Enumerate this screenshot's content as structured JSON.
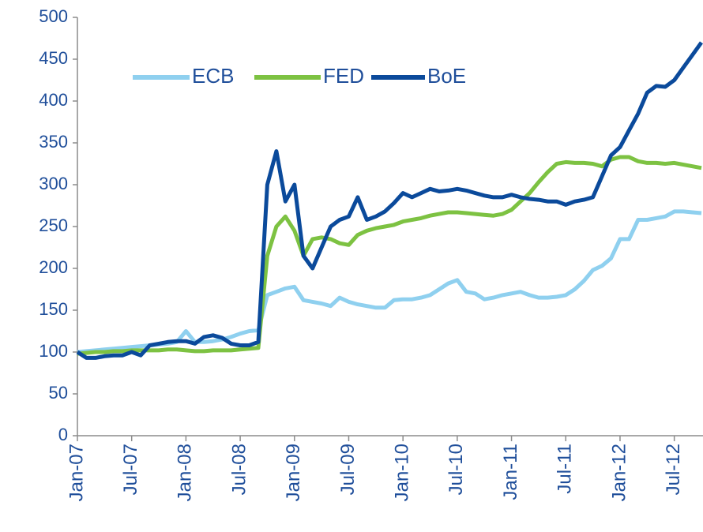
{
  "chart_data": {
    "type": "line",
    "categories": [
      "Jan-07",
      null,
      null,
      null,
      null,
      null,
      "Jul-07",
      null,
      null,
      null,
      null,
      null,
      "Jan-08",
      null,
      null,
      null,
      null,
      null,
      "Jul-08",
      null,
      null,
      null,
      null,
      null,
      "Jan-09",
      null,
      null,
      null,
      null,
      null,
      "Jul-09",
      null,
      null,
      null,
      null,
      null,
      "Jan-10",
      null,
      null,
      null,
      null,
      null,
      "Jul-10",
      null,
      null,
      null,
      null,
      null,
      "Jan-11",
      null,
      null,
      null,
      null,
      null,
      "Jul-11",
      null,
      null,
      null,
      null,
      null,
      "Jan-12",
      null,
      null,
      null,
      null,
      null,
      "Jul-12",
      null,
      null,
      null
    ],
    "series": [
      {
        "name": "ECB",
        "color": "#8fd0ef",
        "values": [
          100,
          101,
          102,
          103,
          104,
          105,
          106,
          107,
          108,
          109,
          110,
          112,
          125,
          112,
          112,
          113,
          115,
          118,
          122,
          125,
          126,
          168,
          172,
          176,
          178,
          162,
          160,
          158,
          155,
          165,
          160,
          157,
          155,
          153,
          153,
          162,
          163,
          163,
          165,
          168,
          175,
          182,
          186,
          172,
          170,
          163,
          165,
          168,
          170,
          172,
          168,
          165,
          165,
          166,
          168,
          175,
          185,
          198,
          203,
          212,
          235,
          235,
          258,
          258,
          260,
          262,
          268,
          268,
          267,
          266
        ]
      },
      {
        "name": "FED",
        "color": "#7dc242",
        "values": [
          98,
          99,
          100,
          100,
          101,
          101,
          102,
          102,
          102,
          102,
          103,
          103,
          102,
          101,
          101,
          102,
          102,
          102,
          103,
          104,
          105,
          215,
          250,
          262,
          245,
          215,
          235,
          237,
          235,
          230,
          228,
          240,
          245,
          248,
          250,
          252,
          256,
          258,
          260,
          263,
          265,
          267,
          267,
          266,
          265,
          264,
          263,
          265,
          270,
          280,
          290,
          303,
          315,
          325,
          327,
          326,
          326,
          325,
          322,
          330,
          333,
          333,
          328,
          326,
          326,
          325,
          326,
          324,
          322,
          320
        ]
      },
      {
        "name": "BoE",
        "color": "#0b4a9b",
        "values": [
          100,
          93,
          93,
          95,
          96,
          96,
          100,
          96,
          108,
          110,
          112,
          113,
          113,
          110,
          118,
          120,
          117,
          110,
          108,
          108,
          112,
          300,
          340,
          280,
          300,
          215,
          200,
          225,
          250,
          258,
          262,
          285,
          258,
          262,
          268,
          278,
          290,
          285,
          290,
          295,
          292,
          293,
          295,
          293,
          290,
          287,
          285,
          285,
          288,
          285,
          283,
          282,
          280,
          280,
          276,
          280,
          282,
          285,
          310,
          335,
          345,
          365,
          385,
          410,
          418,
          417,
          425,
          440,
          455,
          470
        ]
      }
    ],
    "ylim": [
      0,
      500
    ],
    "yticks": [
      0,
      50,
      100,
      150,
      200,
      250,
      300,
      350,
      400,
      450,
      500
    ],
    "legend": "upper left",
    "grid": false
  }
}
